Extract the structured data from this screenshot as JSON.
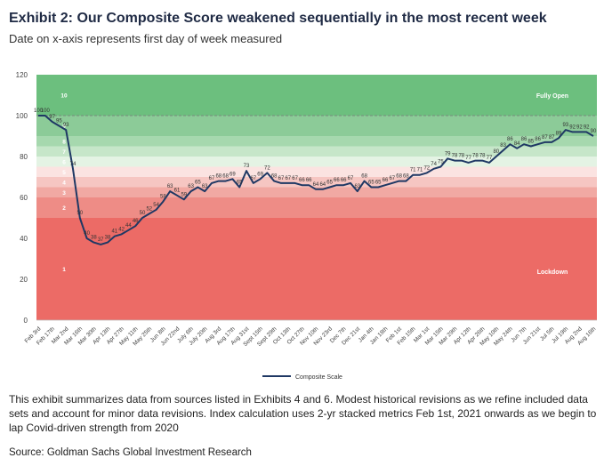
{
  "title": "Exhibit 2: Our Composite Score weakened sequentially in the most recent week",
  "subtitle": "Date on x-axis represents first day of week measured",
  "note": "This exhibit summarizes data from sources listed in Exhibits 4 and 6. Modest historical revisions as we refine included data sets and account for minor data revisions. Index calculation uses 2-yr stacked metrics Feb 1st, 2021 onwards as we begin to lap Covid-driven strength from 2020",
  "source": "Source: Goldman Sachs Global Investment Research",
  "chart_data": {
    "type": "line",
    "ylim": [
      0,
      120
    ],
    "yticks": [
      0,
      20,
      40,
      60,
      80,
      100,
      120
    ],
    "grid": false,
    "legend_position": "bottom-center",
    "reference_line": 100,
    "zone_labels": {
      "top": "Fully Open",
      "bottom": "Lockdown"
    },
    "bands": [
      {
        "label": "10",
        "from": 100,
        "to": 120,
        "color": "#6cbf7e"
      },
      {
        "label": "9",
        "from": 90,
        "to": 100,
        "color": "#8ccb98"
      },
      {
        "label": "8",
        "from": 85,
        "to": 90,
        "color": "#a6d8ae"
      },
      {
        "label": "7",
        "from": 80,
        "to": 85,
        "color": "#c6e6c9"
      },
      {
        "label": "6",
        "from": 75,
        "to": 80,
        "color": "#e4f3e4"
      },
      {
        "label": "5",
        "from": 70,
        "to": 75,
        "color": "#fbe3e1"
      },
      {
        "label": "4",
        "from": 65,
        "to": 70,
        "color": "#f6c6c2"
      },
      {
        "label": "3",
        "from": 60,
        "to": 65,
        "color": "#f1a9a3"
      },
      {
        "label": "2",
        "from": 50,
        "to": 60,
        "color": "#ee8c86"
      },
      {
        "label": "1",
        "from": 0,
        "to": 50,
        "color": "#ec6b66"
      }
    ],
    "tick_labels": [
      "Feb 3rd",
      "Feb 17th",
      "Mar 2nd",
      "Mar 16th",
      "Mar 30th",
      "Apr 13th",
      "Apr 27th",
      "May 11th",
      "May 25th",
      "Jun 8th",
      "Jun 22nd",
      "July 6th",
      "July 20th",
      "Aug 3rd",
      "Aug 17th",
      "Aug 31st",
      "Sept 15th",
      "Sept 29th",
      "Oct 13th",
      "Oct 27th",
      "Nov 10th",
      "Nov 23rd",
      "Dec 7th",
      "Dec 21st",
      "Jan 4th",
      "Jan 18th",
      "Feb 1st",
      "Feb 15th",
      "Mar 1st",
      "Mar 15th",
      "Mar 29th",
      "Apr 12th",
      "Apr 26th",
      "May 10th",
      "May 24th",
      "Jun 7th",
      "Jun 21st",
      "Jul 5th",
      "Jul 19th",
      "Aug 2nd",
      "Aug 16th"
    ],
    "series": [
      {
        "name": "Composite Scale",
        "color": "#1f3864",
        "values": [
          100,
          100,
          97,
          95,
          93,
          74,
          50,
          40,
          38,
          37,
          38,
          41,
          42,
          44,
          46,
          50,
          52,
          54,
          58,
          63,
          61,
          59,
          63,
          65,
          63,
          67,
          68,
          68,
          69,
          65,
          73,
          67,
          69,
          72,
          68,
          67,
          67,
          67,
          66,
          66,
          64,
          64,
          65,
          66,
          66,
          67,
          63,
          68,
          65,
          65,
          66,
          67,
          68,
          68,
          71,
          71,
          72,
          74,
          75,
          79,
          78,
          78,
          77,
          78,
          78,
          77,
          80,
          83,
          86,
          84,
          86,
          85,
          86,
          87,
          87,
          89,
          93,
          92,
          92,
          92,
          90
        ]
      }
    ],
    "value_labels": [
      "100",
      "100",
      "97",
      "95",
      "93",
      "74",
      "50",
      "40",
      "38",
      "37",
      "38",
      "41",
      "42",
      "44",
      "46",
      "50",
      "52",
      "54",
      "58",
      "63",
      "61",
      "59",
      "63",
      "65",
      "63",
      "67",
      "68",
      "68",
      "69",
      "65",
      "73",
      "67",
      "69",
      "72",
      "68",
      "67",
      "67",
      "67",
      "66",
      "66",
      "64",
      "64",
      "65",
      "66",
      "66",
      "67",
      "63",
      "68",
      "65",
      "65",
      "66",
      "67",
      "68",
      "68",
      "71",
      "71",
      "72",
      "74",
      "75",
      "79",
      "78",
      "78",
      "77",
      "78",
      "78",
      "77",
      "80",
      "83",
      "86",
      "84",
      "86",
      "85",
      "86",
      "87",
      "87",
      "89",
      "93",
      "92",
      "92",
      "92",
      "90"
    ]
  }
}
